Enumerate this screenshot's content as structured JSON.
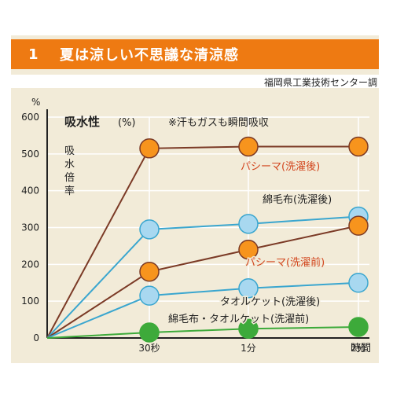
{
  "banner": {
    "number": "1",
    "title": "夏は涼しい不思議な清涼感"
  },
  "source": "福岡県工業技術センター調",
  "chart_data": {
    "type": "line",
    "title": "吸水性",
    "title_unit": "(%)",
    "note": "※汗もガスも瞬間吸収",
    "ylabel": "吸水倍率",
    "y_unit": "%",
    "xlabel": "時間",
    "x_ticks": [
      "30秒",
      "1分",
      "2分"
    ],
    "ylim": [
      0,
      600
    ],
    "y_ticks": [
      "0",
      "100",
      "200",
      "300",
      "400",
      "500",
      "600"
    ],
    "grid": true,
    "series": [
      {
        "name": "パシーマ(洗濯後)",
        "color": "#f7941d",
        "line": "#7b3a26",
        "values": [
          0,
          515,
          520,
          520
        ]
      },
      {
        "name": "綿毛布(洗濯後)",
        "color": "#a8d8f0",
        "line": "#3aa6cf",
        "values": [
          0,
          295,
          310,
          330
        ]
      },
      {
        "name": "パシーマ(洗濯前)",
        "color": "#f7941d",
        "line": "#7b3a26",
        "values": [
          0,
          180,
          240,
          305
        ]
      },
      {
        "name": "タオルケット(洗濯後)",
        "color": "#a8d8f0",
        "line": "#3aa6cf",
        "values": [
          0,
          115,
          135,
          150
        ]
      },
      {
        "name": "綿毛布・タオルケット(洗濯前)",
        "color": "#3daa3a",
        "line": "#3daa3a",
        "values": [
          0,
          15,
          25,
          30
        ]
      }
    ]
  }
}
